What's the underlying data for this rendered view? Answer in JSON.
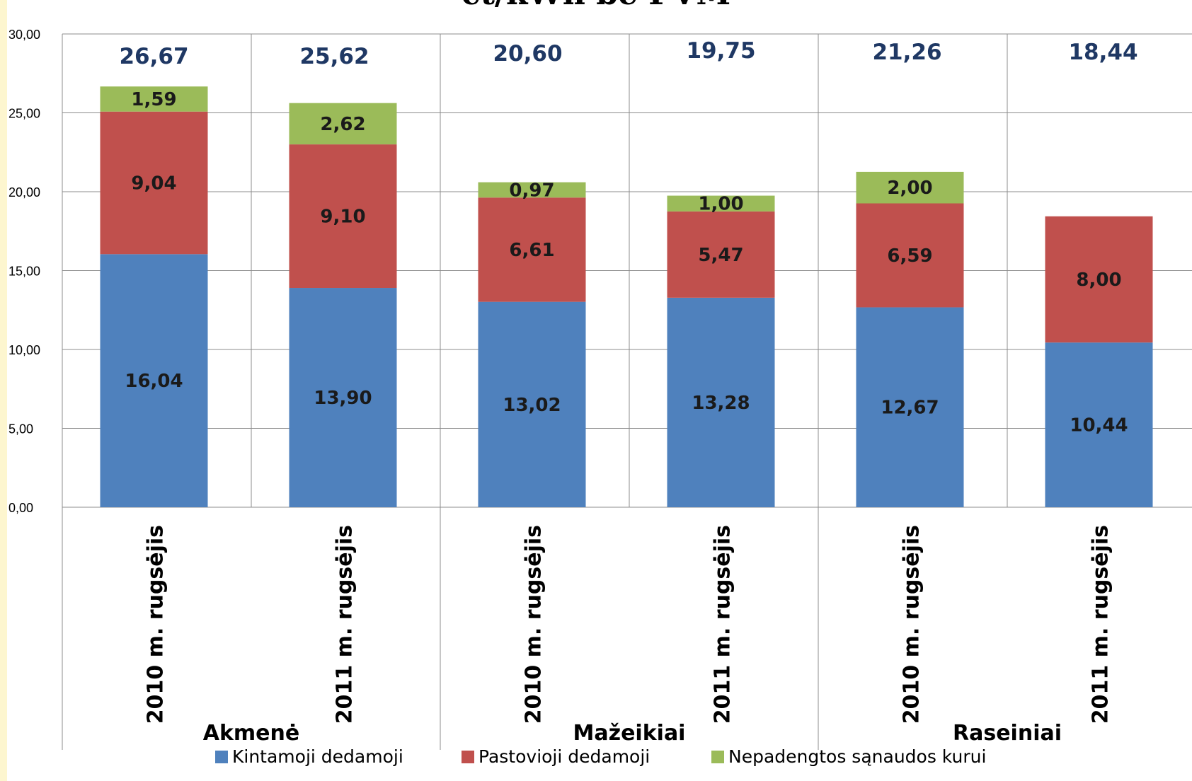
{
  "title": "ct/kWh be PVM",
  "chart_data": {
    "type": "bar",
    "stacked": true,
    "title": "ct/kWh be PVM",
    "categories": [
      "2010 m. rugsėjis",
      "2011 m. rugsėjis",
      "2010 m. rugsėjis",
      "2011 m. rugsėjis",
      "2010 m. rugsėjis",
      "2011 m. rugsėjis"
    ],
    "groups": [
      {
        "label": "Akmenė"
      },
      {
        "label": "Mažeikiai"
      },
      {
        "label": "Raseiniai"
      }
    ],
    "series": [
      {
        "name": "Kintamoji dedamoji",
        "color": "#4f81bd",
        "values": [
          16.04,
          13.9,
          13.02,
          13.28,
          12.67,
          10.44
        ],
        "labels": [
          "16,04",
          "13,90",
          "13,02",
          "13,28",
          "12,67",
          "10,44"
        ]
      },
      {
        "name": "Pastovioji dedamoji",
        "color": "#c0504d",
        "values": [
          9.04,
          9.1,
          6.61,
          5.47,
          6.59,
          8.0
        ],
        "labels": [
          "9,04",
          "9,10",
          "6,61",
          "5,47",
          "6,59",
          "8,00"
        ]
      },
      {
        "name": "Nepadengtos sąnaudos  kurui",
        "color": "#9bbb59",
        "values": [
          1.59,
          2.62,
          0.97,
          1.0,
          2.0,
          null
        ],
        "labels": [
          "1,59",
          "2,62",
          "0,97",
          "1,00",
          "2,00",
          null
        ]
      }
    ],
    "totals": [
      "26,67",
      "25,62",
      "20,60",
      "19,75",
      "21,26",
      "18,44"
    ],
    "total_color": "#1f3864",
    "ylim": [
      0,
      30
    ],
    "yticks": [
      "0,00",
      "5,00",
      "10,00",
      "15,00",
      "20,00",
      "25,00",
      "30,00"
    ],
    "xlabel": "",
    "ylabel": "",
    "grid": true,
    "legend": "bottom"
  }
}
